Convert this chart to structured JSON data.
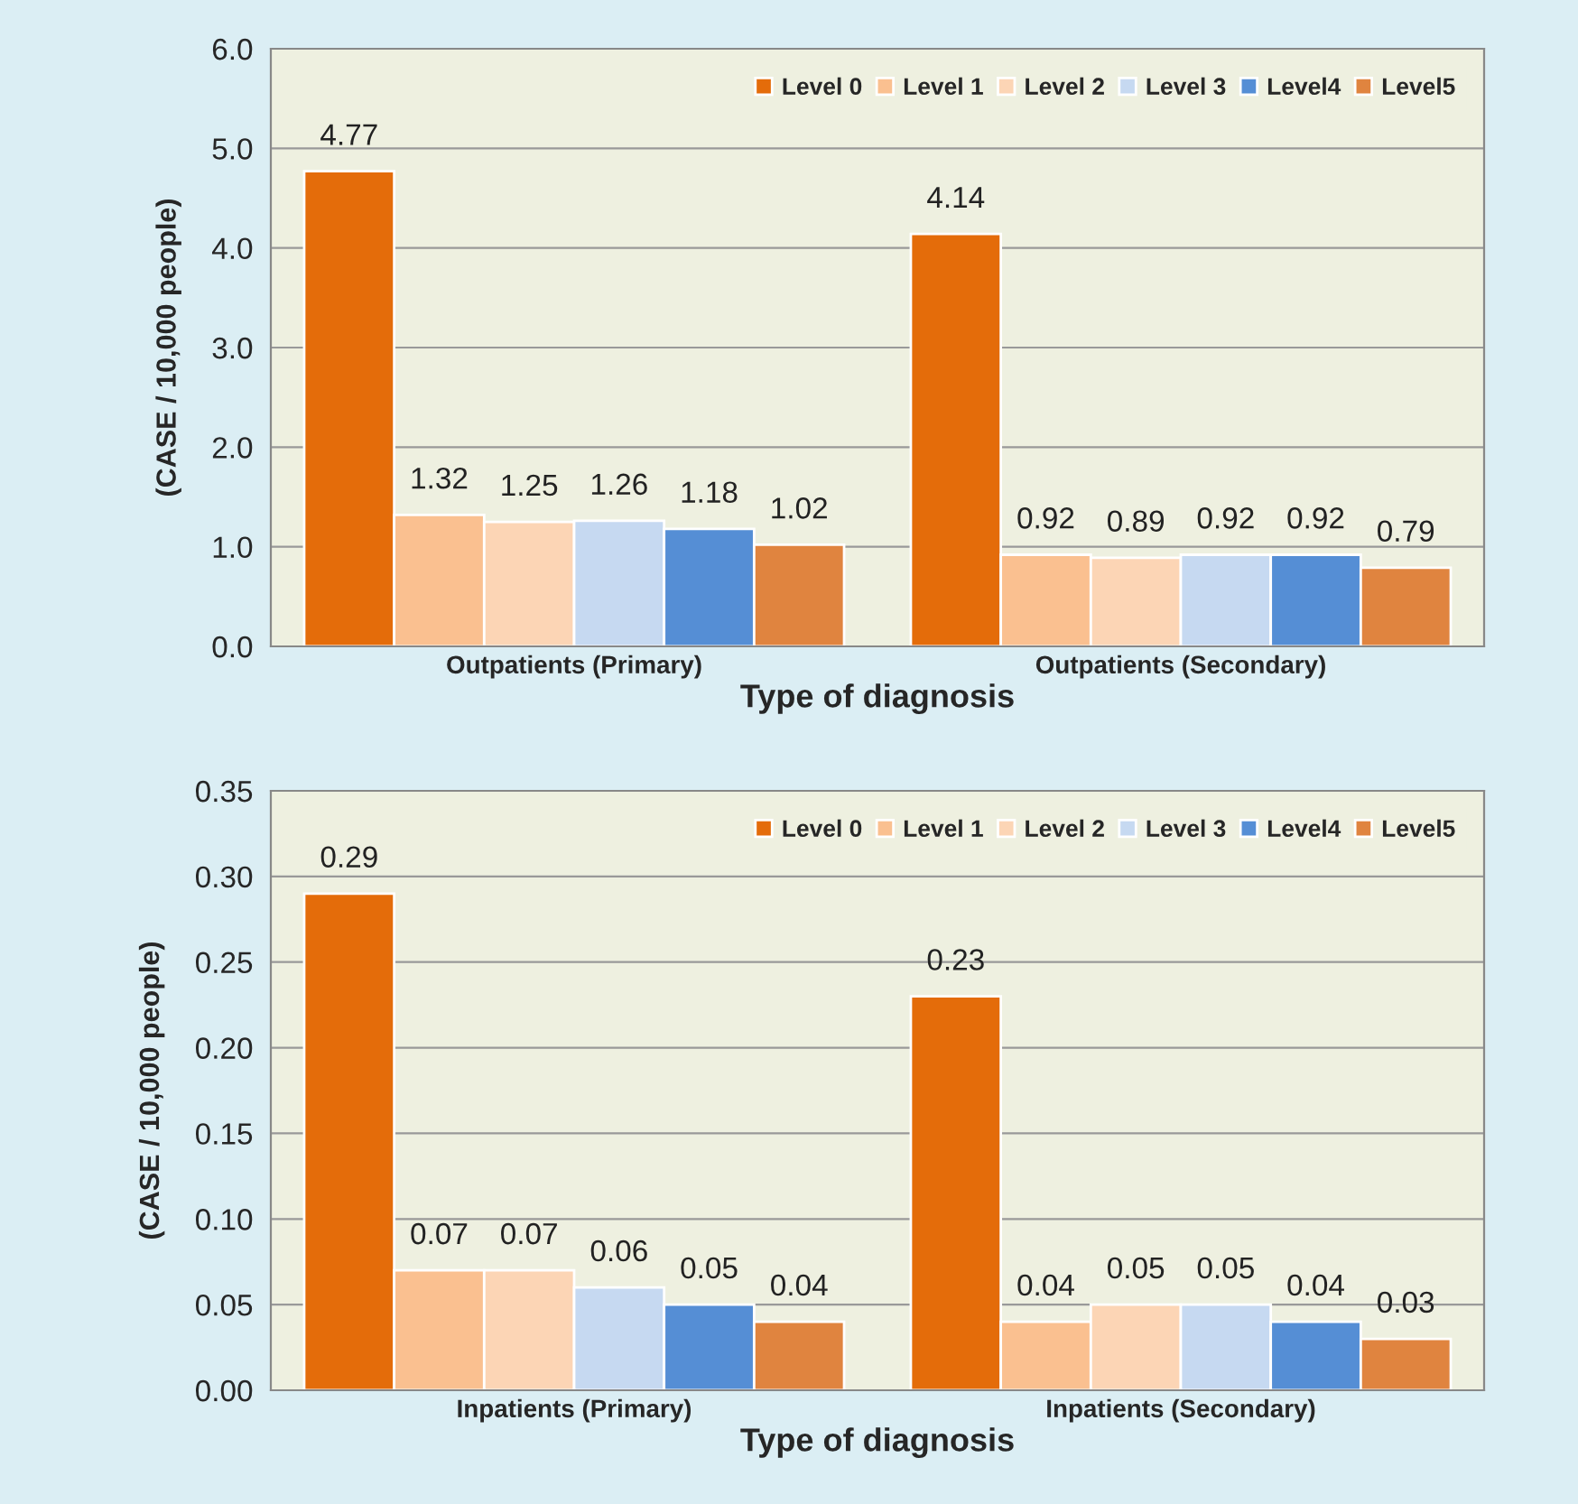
{
  "chart_data": [
    {
      "type": "bar",
      "categories": [
        "Outpatients (Primary)",
        "Outpatients (Secondary)"
      ],
      "xlabel": "Type of diagnosis",
      "ylabel": "(CASE / 10,000 people)",
      "series": [
        {
          "name": "Level 0",
          "color": "#e46c0a",
          "values": [
            4.77,
            4.14
          ]
        },
        {
          "name": "Level 1",
          "color": "#fac090",
          "values": [
            1.32,
            0.92
          ]
        },
        {
          "name": "Level 2",
          "color": "#fcd5b5",
          "values": [
            1.25,
            0.89
          ]
        },
        {
          "name": "Level 3",
          "color": "#c6d9f1",
          "values": [
            1.26,
            0.92
          ]
        },
        {
          "name": "Level4",
          "color": "#558ed5",
          "values": [
            1.18,
            0.92
          ]
        },
        {
          "name": "Level5",
          "color": "#e0843f",
          "values": [
            1.02,
            0.79
          ]
        }
      ],
      "ylim": [
        0,
        6
      ],
      "yticks": [
        {
          "value": 0,
          "label": "0.0"
        },
        {
          "value": 1,
          "label": "1.0"
        },
        {
          "value": 2,
          "label": "2.0"
        },
        {
          "value": 3,
          "label": "3.0"
        },
        {
          "value": 4,
          "label": "4.0"
        },
        {
          "value": 5,
          "label": "5.0"
        },
        {
          "value": 6,
          "label": "6.0"
        }
      ],
      "grid": "y",
      "legend": "top right",
      "data_labels": true
    },
    {
      "type": "bar",
      "categories": [
        "Inpatients (Primary)",
        "Inpatients (Secondary)"
      ],
      "xlabel": "Type of diagnosis",
      "ylabel": "(CASE / 10,000 people)",
      "series": [
        {
          "name": "Level 0",
          "color": "#e46c0a",
          "values": [
            0.29,
            0.23
          ]
        },
        {
          "name": "Level 1",
          "color": "#fac090",
          "values": [
            0.07,
            0.04
          ]
        },
        {
          "name": "Level 2",
          "color": "#fcd5b5",
          "values": [
            0.07,
            0.05
          ]
        },
        {
          "name": "Level 3",
          "color": "#c6d9f1",
          "values": [
            0.06,
            0.05
          ]
        },
        {
          "name": "Level4",
          "color": "#558ed5",
          "values": [
            0.05,
            0.04
          ]
        },
        {
          "name": "Level5",
          "color": "#e0843f",
          "values": [
            0.04,
            0.03
          ]
        }
      ],
      "ylim": [
        0,
        0.35
      ],
      "yticks": [
        {
          "value": 0,
          "label": "0.00"
        },
        {
          "value": 0.05,
          "label": "0.05"
        },
        {
          "value": 0.1,
          "label": "0.10"
        },
        {
          "value": 0.15,
          "label": "0.15"
        },
        {
          "value": 0.2,
          "label": "0.20"
        },
        {
          "value": 0.25,
          "label": "0.25"
        },
        {
          "value": 0.3,
          "label": "0.30"
        },
        {
          "value": 0.35,
          "label": "0.35"
        }
      ],
      "grid": "y",
      "legend": "top right",
      "data_labels": true
    }
  ]
}
